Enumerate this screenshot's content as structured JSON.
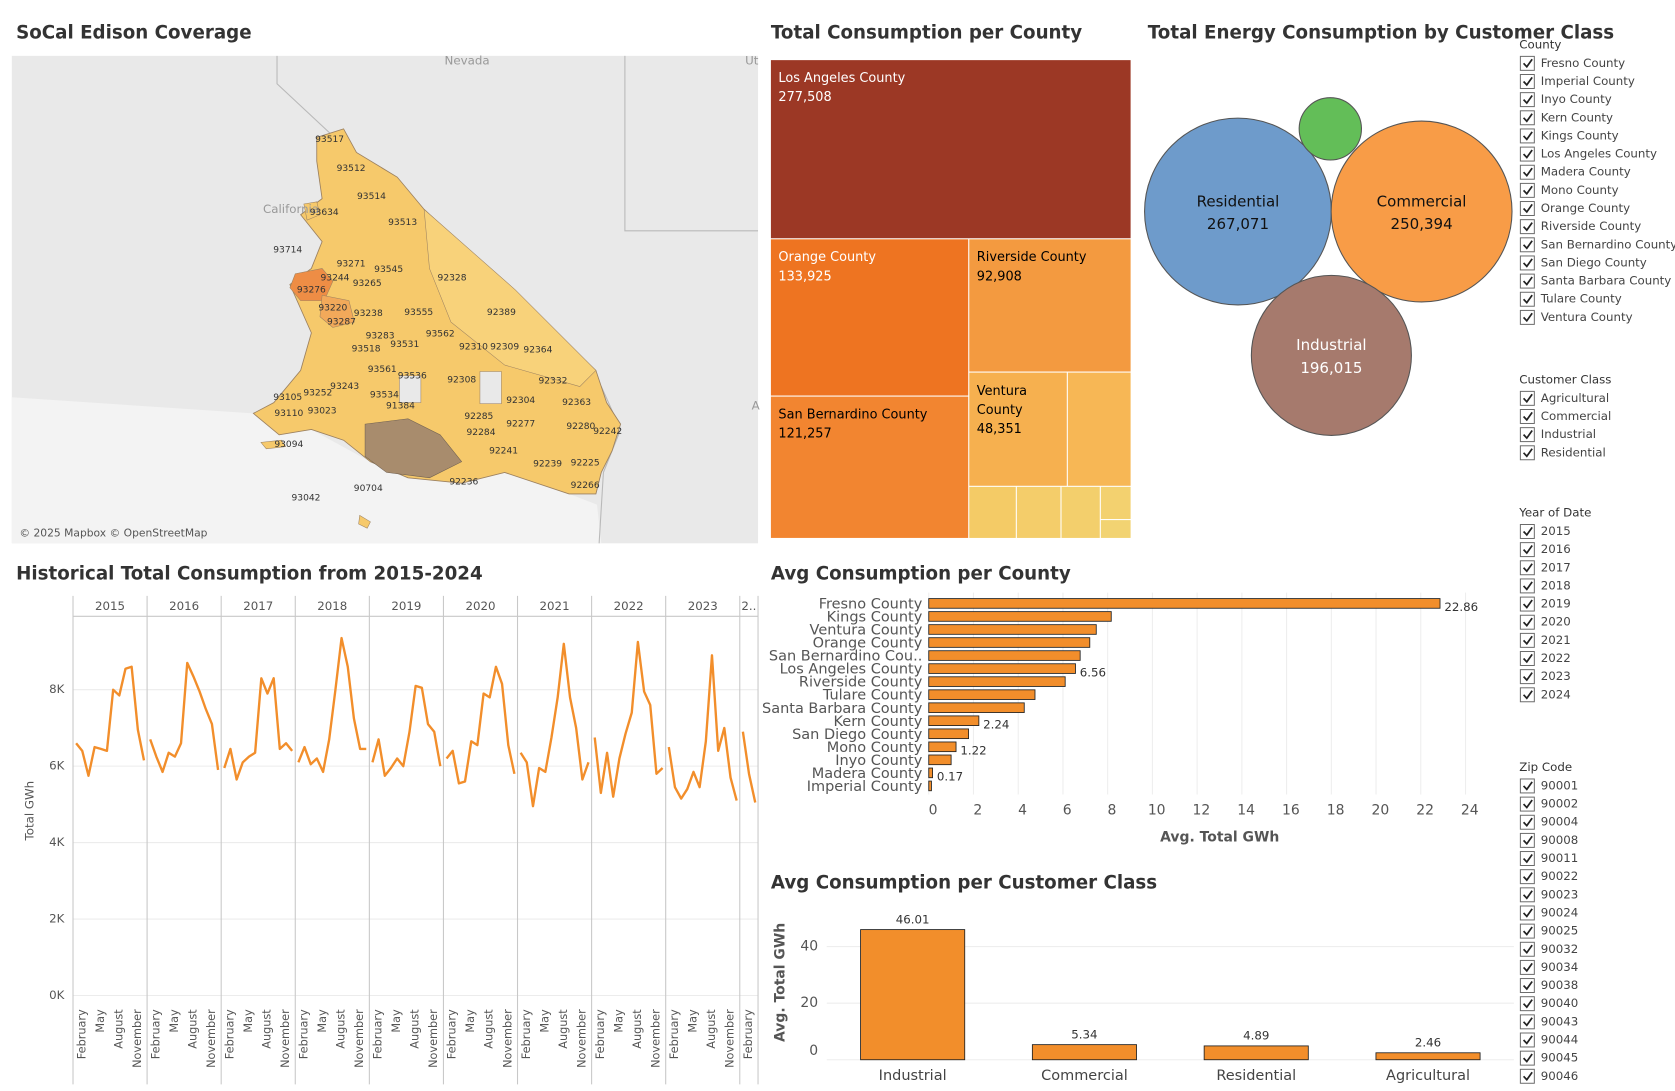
{
  "map": {
    "title": "SoCal Edison Coverage",
    "labels": [
      "Nevada",
      "California",
      "Ut",
      "A"
    ],
    "attribution": "© 2025 Mapbox © OpenStreetMap",
    "zip_labels": [
      "93517",
      "93512",
      "93514",
      "93634",
      "93513",
      "93714",
      "93271",
      "93545",
      "93244",
      "93265",
      "93276",
      "92328",
      "93220",
      "93238",
      "93555",
      "92389",
      "93287",
      "93283",
      "93562",
      "93518",
      "93531",
      "92310",
      "92309",
      "92364",
      "93561",
      "93536",
      "92308",
      "92332",
      "93252",
      "93243",
      "93534",
      "92304",
      "92363",
      "93105",
      "93023",
      "91384",
      "92285",
      "93110",
      "92277",
      "92280",
      "92242",
      "92284",
      "93094",
      "92241",
      "90704",
      "92239",
      "92225",
      "92266",
      "93042",
      "92236"
    ]
  },
  "chart_data": [
    {
      "type": "treemap",
      "title": "Total Consumption per County",
      "categories": [
        "Los Angeles County",
        "Orange County",
        "San Bernardino County",
        "Riverside County",
        "Ventura County",
        null,
        null,
        null,
        null,
        null,
        null
      ],
      "values": [
        277508,
        133925,
        121257,
        92908,
        48351,
        31300,
        10650,
        10000,
        8800,
        4400,
        2500
      ],
      "value_labels": [
        "277,508",
        "133,925",
        "121,257",
        "92,908",
        "48,351",
        null,
        null,
        null,
        null,
        null,
        null
      ],
      "colors": [
        "#9c3825",
        "#ee7421",
        "#f28530",
        "#f39a40",
        "#f6b04f",
        "#f7b755",
        "#f4cb66",
        "#f4cd6a",
        "#f3cf6c",
        "#f3d16f",
        "#f2d372"
      ],
      "label_colors": [
        "#ffffff",
        "#ffffff",
        "#000000",
        "#000000",
        "#000000",
        "#000000",
        "#000000",
        "#000000",
        "#000000",
        "#000000",
        "#000000"
      ]
    },
    {
      "type": "bubble",
      "title": "Total Energy Consumption by Customer Class",
      "categories": [
        "Residential",
        "Commercial",
        "Industrial",
        null
      ],
      "values": [
        267071,
        250394,
        196015,
        29700
      ],
      "value_labels": [
        "267,071",
        "250,394",
        "196,015",
        null
      ],
      "colors": [
        "#6e9bcb",
        "#f89c47",
        "#a67a6d",
        "#63be58"
      ],
      "label_colors": [
        "#111111",
        "#111111",
        "#ffffff",
        "#111111"
      ]
    },
    {
      "type": "line",
      "title": "Historical Total Consumption from 2015-2024",
      "y_label": "Total GWh",
      "color": "#f28e2b",
      "categories": [
        null,
        "February",
        null,
        null,
        "May",
        null,
        null,
        "August",
        null,
        null,
        "November",
        null
      ],
      "facets": [
        {
          "label": "2015",
          "values": [
            6600,
            6400,
            5750,
            6500,
            6450,
            6400,
            8000,
            7850,
            8550,
            8600,
            6950,
            6150
          ]
        },
        {
          "label": "2016",
          "values": [
            6700,
            6250,
            5850,
            6350,
            6250,
            6600,
            8700,
            8350,
            7950,
            7500,
            7100,
            5900
          ]
        },
        {
          "label": "2017",
          "values": [
            5950,
            6450,
            5650,
            6100,
            6250,
            6350,
            8300,
            7900,
            8300,
            6450,
            6600,
            6400
          ]
        },
        {
          "label": "2018",
          "values": [
            6100,
            6500,
            6050,
            6200,
            5850,
            6700,
            8000,
            9350,
            8600,
            7250,
            6450,
            6450
          ]
        },
        {
          "label": "2019",
          "values": [
            6100,
            6700,
            5750,
            5950,
            6200,
            6000,
            6900,
            8100,
            8050,
            7100,
            6900,
            6000
          ]
        },
        {
          "label": "2020",
          "values": [
            6200,
            6400,
            5550,
            5600,
            6650,
            6550,
            7900,
            7800,
            8600,
            8150,
            6550,
            5800
          ]
        },
        {
          "label": "2021",
          "values": [
            6350,
            6100,
            4950,
            5950,
            5850,
            6750,
            7800,
            9200,
            7800,
            7000,
            5650,
            6100
          ]
        },
        {
          "label": "2022",
          "values": [
            6750,
            5300,
            6350,
            5200,
            6200,
            6850,
            7400,
            9250,
            7950,
            7600,
            5800,
            5950
          ]
        },
        {
          "label": "2023",
          "values": [
            6500,
            5450,
            5150,
            5400,
            5850,
            5450,
            6650,
            8900,
            6400,
            7000,
            5700,
            5100
          ]
        },
        {
          "label": "2..",
          "values": [
            6900,
            5800,
            5050,
            null,
            null,
            null,
            null,
            null,
            null,
            null,
            null,
            null
          ]
        }
      ],
      "ylim": [
        -220,
        9920
      ],
      "yticks": [
        {
          "value": 0,
          "label": "0K"
        },
        {
          "value": 2000,
          "label": "2K"
        },
        {
          "value": 4000,
          "label": "4K"
        },
        {
          "value": 6000,
          "label": "6K"
        },
        {
          "value": 8000,
          "label": "8K"
        }
      ],
      "grid": true
    },
    {
      "type": "barh",
      "title": "Avg Consumption per County",
      "x_label": "Avg. Total GWh",
      "color": "#f28e2b",
      "categories": [
        "Fresno County",
        "Kings County",
        "Ventura County",
        "Orange County",
        "San Bernardino Cou..",
        "Los Angeles County",
        "Riverside County",
        "Tulare County",
        "Santa Barbara County",
        "Kern County",
        "San Diego County",
        "Mono County",
        "Inyo County",
        "Madera County",
        "Imperial County"
      ],
      "values": [
        22.86,
        8.16,
        7.49,
        7.2,
        6.77,
        6.56,
        6.1,
        4.75,
        4.27,
        2.24,
        1.78,
        1.22,
        1.0,
        0.17,
        0.12
      ],
      "value_labels": [
        "22.86",
        null,
        null,
        null,
        null,
        "6.56",
        null,
        null,
        null,
        "2.24",
        null,
        "1.22",
        null,
        "0.17",
        null
      ],
      "xlim": [
        0,
        24.7
      ],
      "xticks": [
        0,
        2,
        4,
        6,
        8,
        10,
        12,
        14,
        16,
        18,
        20,
        22,
        24
      ],
      "grid": true
    },
    {
      "type": "bar",
      "title": "Avg Consumption per Customer Class",
      "y_label": "Avg. Total GWh",
      "color": "#f28e2b",
      "categories": [
        "Industrial",
        "Commercial",
        "Residential",
        "Agricultural"
      ],
      "values": [
        46.01,
        5.34,
        4.89,
        2.46
      ],
      "ylim": [
        0,
        52
      ],
      "yticks": [
        0,
        20,
        40
      ],
      "grid": true
    }
  ],
  "filters": [
    {
      "title": "County",
      "items": [
        "Fresno County",
        "Imperial County",
        "Inyo County",
        "Kern County",
        "Kings County",
        "Los Angeles County",
        "Madera County",
        "Mono County",
        "Orange County",
        "Riverside County",
        "San Bernardino County",
        "San Diego County",
        "Santa Barbara County",
        "Tulare County",
        "Ventura County"
      ]
    },
    {
      "title": "Customer Class",
      "items": [
        "Agricultural",
        "Commercial",
        "Industrial",
        "Residential"
      ]
    },
    {
      "title": "Year of Date",
      "items": [
        "2015",
        "2016",
        "2017",
        "2018",
        "2019",
        "2020",
        "2021",
        "2022",
        "2023",
        "2024"
      ]
    },
    {
      "title": "Zip Code",
      "items": [
        "90001",
        "90002",
        "90004",
        "90008",
        "90011",
        "90022",
        "90023",
        "90024",
        "90025",
        "90032",
        "90034",
        "90038",
        "90040",
        "90043",
        "90044",
        "90045",
        "90046"
      ]
    }
  ]
}
